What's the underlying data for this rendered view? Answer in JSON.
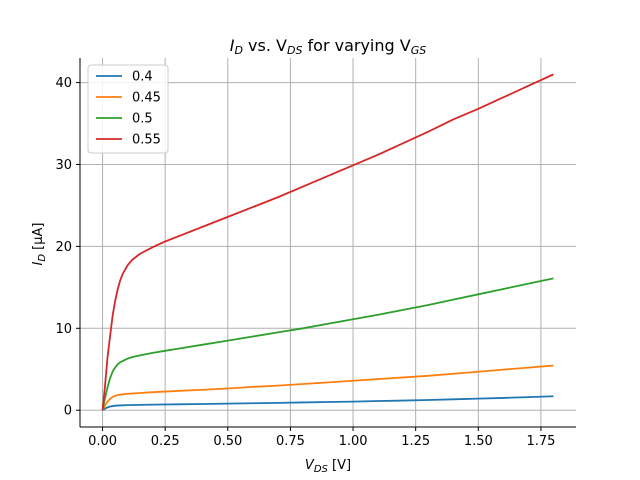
{
  "chart_data": {
    "type": "line",
    "title": {
      "a": "I",
      "a_sub": "D",
      "b": " vs. V",
      "b_sub": "DS",
      "c": " for varying V",
      "c_sub": "GS"
    },
    "xlabel": {
      "a": "V",
      "a_sub": "DS",
      "b": " [V]"
    },
    "ylabel": {
      "a": "I",
      "a_sub": "D",
      "b": " [μA]"
    },
    "xlim": [
      -0.09,
      1.89
    ],
    "ylim": [
      -2.05,
      43.0
    ],
    "xticks": [
      0.0,
      0.25,
      0.5,
      0.75,
      1.0,
      1.25,
      1.5,
      1.75
    ],
    "xtick_labels": [
      "0.00",
      "0.25",
      "0.50",
      "0.75",
      "1.00",
      "1.25",
      "1.50",
      "1.75"
    ],
    "yticks": [
      0,
      10,
      20,
      30,
      40
    ],
    "ytick_labels": [
      "0",
      "10",
      "20",
      "30",
      "40"
    ],
    "grid": true,
    "legend_position": "top-left",
    "series": [
      {
        "name": "0.4",
        "color": "#1f77b4",
        "x": [
          0.0,
          0.01,
          0.02,
          0.03,
          0.05,
          0.08,
          0.1,
          0.15,
          0.2,
          0.3,
          0.4,
          0.5,
          0.6,
          0.7,
          0.8,
          0.9,
          1.0,
          1.1,
          1.2,
          1.3,
          1.4,
          1.5,
          1.6,
          1.7,
          1.8
        ],
        "y": [
          0.0,
          0.2,
          0.35,
          0.45,
          0.55,
          0.6,
          0.62,
          0.65,
          0.68,
          0.72,
          0.76,
          0.8,
          0.85,
          0.9,
          0.95,
          1.0,
          1.05,
          1.12,
          1.18,
          1.25,
          1.33,
          1.41,
          1.5,
          1.6,
          1.7
        ]
      },
      {
        "name": "0.45",
        "color": "#ff7f0e",
        "x": [
          0.0,
          0.01,
          0.02,
          0.03,
          0.04,
          0.05,
          0.06,
          0.08,
          0.1,
          0.15,
          0.2,
          0.3,
          0.4,
          0.5,
          0.6,
          0.7,
          0.8,
          0.9,
          1.0,
          1.1,
          1.2,
          1.3,
          1.4,
          1.5,
          1.6,
          1.7,
          1.8
        ],
        "y": [
          0.0,
          0.6,
          1.05,
          1.4,
          1.6,
          1.75,
          1.85,
          1.95,
          2.0,
          2.1,
          2.2,
          2.35,
          2.5,
          2.65,
          2.85,
          3.0,
          3.2,
          3.4,
          3.6,
          3.8,
          4.0,
          4.2,
          4.45,
          4.7,
          4.95,
          5.2,
          5.45
        ]
      },
      {
        "name": "0.5",
        "color": "#2ca02c",
        "x": [
          0.0,
          0.01,
          0.02,
          0.03,
          0.04,
          0.05,
          0.06,
          0.07,
          0.08,
          0.1,
          0.12,
          0.15,
          0.2,
          0.25,
          0.3,
          0.4,
          0.5,
          0.6,
          0.7,
          0.8,
          0.9,
          1.0,
          1.1,
          1.2,
          1.3,
          1.4,
          1.5,
          1.6,
          1.7,
          1.8
        ],
        "y": [
          0.0,
          1.5,
          2.8,
          3.9,
          4.7,
          5.2,
          5.6,
          5.85,
          6.0,
          6.3,
          6.5,
          6.7,
          7.0,
          7.25,
          7.5,
          8.0,
          8.5,
          9.0,
          9.5,
          10.0,
          10.55,
          11.1,
          11.65,
          12.25,
          12.85,
          13.5,
          14.15,
          14.8,
          15.45,
          16.1
        ]
      },
      {
        "name": "0.55",
        "color": "#d62728",
        "x": [
          0.0,
          0.01,
          0.02,
          0.03,
          0.04,
          0.05,
          0.06,
          0.07,
          0.08,
          0.1,
          0.12,
          0.15,
          0.2,
          0.25,
          0.3,
          0.4,
          0.5,
          0.6,
          0.7,
          0.8,
          0.9,
          1.0,
          1.1,
          1.2,
          1.3,
          1.4,
          1.5,
          1.6,
          1.7,
          1.8
        ],
        "y": [
          0.0,
          3.0,
          6.5,
          9.0,
          11.5,
          13.3,
          14.7,
          15.8,
          16.6,
          17.7,
          18.4,
          19.1,
          19.9,
          20.6,
          21.2,
          22.4,
          23.6,
          24.8,
          26.0,
          27.3,
          28.6,
          29.9,
          31.2,
          32.6,
          34.0,
          35.5,
          36.8,
          38.2,
          39.6,
          41.0
        ]
      }
    ]
  }
}
